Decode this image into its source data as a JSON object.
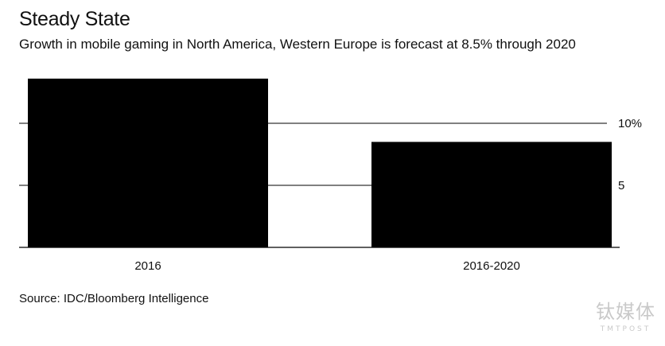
{
  "header": {
    "title": "Steady State",
    "subtitle": "Growth in mobile gaming in North America, Western Europe is forecast at 8.5% through 2020"
  },
  "footer": {
    "source": "Source: IDC/Bloomberg Intelligence"
  },
  "watermark": {
    "cn": "钛媒体",
    "en": "TMTPOST"
  },
  "chart_data": {
    "type": "bar",
    "categories": [
      "2016",
      "2016-2020"
    ],
    "values": [
      13.6,
      8.5
    ],
    "title": "Steady State",
    "subtitle": "Growth in mobile gaming in North America, Western Europe is forecast at 8.5% through 2020",
    "xlabel": "",
    "ylabel": "",
    "ylim": [
      0,
      14.5
    ],
    "yticks": [
      5,
      10
    ],
    "ytick_labels": [
      "5",
      "10%"
    ],
    "y_axis_side": "right",
    "grid": true,
    "bar_color": "#000000",
    "grid_color": "#000000",
    "legend": "none"
  }
}
